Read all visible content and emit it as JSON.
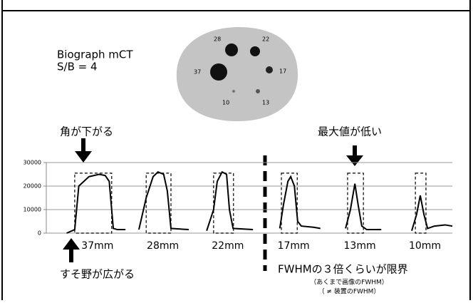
{
  "header": {
    "scanner": "Biograph mCT",
    "ratio": "S/B = 4"
  },
  "phantom": {
    "labels": [
      "28",
      "22",
      "37",
      "17",
      "10",
      "13"
    ]
  },
  "chart_data": {
    "type": "line",
    "ylim": [
      0,
      30000
    ],
    "yticks": [
      0,
      10000,
      20000,
      30000
    ],
    "xlim": [
      0,
      100
    ],
    "grid": true,
    "series": [
      {
        "name": "37mm",
        "color": "#000000",
        "x": [
          5,
          7,
          8,
          10.5,
          13,
          14.5,
          15.5,
          16.5,
          17.5,
          19.5
        ],
        "values": [
          0,
          1500,
          20000,
          24000,
          25000,
          24500,
          22000,
          2000,
          1500,
          1500
        ],
        "box": {
          "x": [
            7,
            16.1
          ],
          "height": 25500
        }
      },
      {
        "name": "28mm",
        "color": "#000000",
        "x": [
          22.8,
          24.6,
          26.3,
          27.5,
          28.9,
          29.8,
          30.7,
          35.1
        ],
        "values": [
          1500,
          15000,
          24000,
          26000,
          25000,
          18000,
          2000,
          1500
        ],
        "box": {
          "x": [
            24.6,
            30.7
          ],
          "height": 25500
        }
      },
      {
        "name": "22mm",
        "color": "#000000",
        "x": [
          39.5,
          41.2,
          42.1,
          43.3,
          44.4,
          45.1,
          46,
          50.9
        ],
        "values": [
          1000,
          10000,
          22000,
          26000,
          25000,
          10000,
          2000,
          1500
        ],
        "box": {
          "x": [
            41.2,
            46.1
          ],
          "height": 25500
        }
      },
      {
        "name": "17mm",
        "color": "#000000",
        "x": [
          57.5,
          58.4,
          59.5,
          60.2,
          61.1,
          61.9,
          62.8,
          65.8,
          67.5
        ],
        "values": [
          2000,
          12000,
          22000,
          24000,
          20000,
          5000,
          3000,
          2500,
          2000
        ],
        "box": {
          "x": [
            57.9,
            61.8
          ],
          "height": 25500
        }
      },
      {
        "name": "13mm",
        "color": "#000000",
        "x": [
          73.7,
          74.9,
          76,
          76.8,
          77.7,
          78.9,
          82.5
        ],
        "values": [
          2000,
          10000,
          21000,
          12000,
          3000,
          1500,
          1500
        ],
        "box": {
          "x": [
            74.2,
            78.1
          ],
          "height": 25500
        }
      },
      {
        "name": "10mm",
        "color": "#000000",
        "x": [
          90,
          91.2,
          92.1,
          93,
          93.9,
          95.6,
          98.2,
          100
        ],
        "values": [
          1000,
          8000,
          16000,
          8000,
          2000,
          3000,
          3500,
          3000
        ],
        "box": {
          "x": [
            90.9,
            93.5
          ],
          "height": 25500
        }
      }
    ],
    "annotations": {
      "corner": "角が下がる",
      "peak": "最大値が低い",
      "tail": "すそ野が広がる",
      "limit": "FWHMの３倍くらいが限界",
      "note1": "（あくまで画像のFWHM）",
      "note2": "（ ≠ 装置のFWHM）"
    }
  }
}
